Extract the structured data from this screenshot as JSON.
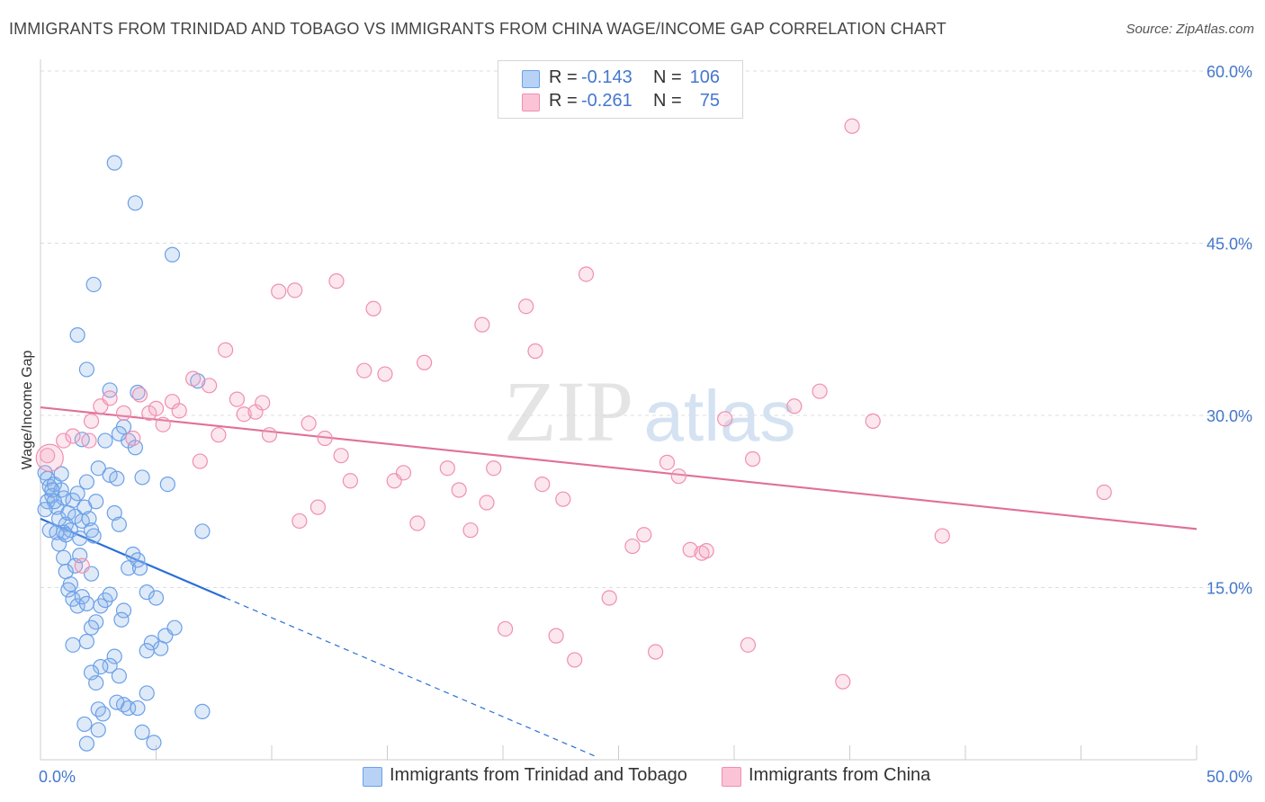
{
  "title": "IMMIGRANTS FROM TRINIDAD AND TOBAGO VS IMMIGRANTS FROM CHINA WAGE/INCOME GAP CORRELATION CHART",
  "source": "Source: ZipAtlas.com",
  "watermark": {
    "zip": "ZIP",
    "atlas": "atlas"
  },
  "legend": {
    "rows": [
      {
        "r_label": "R =",
        "r_value": "-0.143",
        "n_label": "N =",
        "n_value": "106",
        "color": "#6aa0e8",
        "fill": "#b8d2f5"
      },
      {
        "r_label": "R =",
        "r_value": "-0.261",
        "n_label": "N =",
        "n_value": "75",
        "color": "#f08fb0",
        "fill": "#fac4d6"
      }
    ]
  },
  "bottom_legend": [
    {
      "label": "Immigrants from Trinidad and Tobago",
      "color": "#6aa0e8",
      "fill": "#b8d2f5"
    },
    {
      "label": "Immigrants from China",
      "color": "#f08fb0",
      "fill": "#fac4d6"
    }
  ],
  "chart_data": {
    "type": "scatter",
    "ylabel": "Wage/Income Gap",
    "xlabel": "",
    "xlim": [
      0,
      50
    ],
    "ylim": [
      0,
      60
    ],
    "x_tick_labels": [
      "0.0%",
      "50.0%"
    ],
    "y_tick_labels": [
      "15.0%",
      "30.0%",
      "45.0%",
      "60.0%"
    ],
    "y_ticks": [
      15,
      30,
      45,
      60
    ],
    "grid": "horizontal dashed",
    "series": [
      {
        "name": "Immigrants from Trinidad and Tobago",
        "stroke": "#6aa0e8",
        "fill": "rgba(140,180,235,0.28)",
        "trend_color": "#2a6fd6",
        "trend": {
          "x0": 0,
          "y0": 21.0,
          "x1": 8,
          "y1": 14.1,
          "dash_to_x": 24,
          "dash_to_y": 0.3
        },
        "points": [
          [
            0.2,
            25.0
          ],
          [
            0.3,
            24.5
          ],
          [
            0.4,
            23.8
          ],
          [
            0.5,
            23.0
          ],
          [
            0.3,
            22.5
          ],
          [
            0.6,
            24.0
          ],
          [
            0.7,
            22.0
          ],
          [
            0.8,
            21.0
          ],
          [
            0.9,
            23.5
          ],
          [
            1.0,
            22.8
          ],
          [
            1.1,
            20.5
          ],
          [
            1.2,
            21.5
          ],
          [
            1.0,
            19.8
          ],
          [
            0.8,
            18.8
          ],
          [
            1.3,
            20.0
          ],
          [
            1.5,
            21.2
          ],
          [
            1.4,
            22.6
          ],
          [
            1.6,
            23.2
          ],
          [
            1.7,
            19.3
          ],
          [
            1.8,
            20.8
          ],
          [
            1.9,
            22.0
          ],
          [
            2.0,
            24.2
          ],
          [
            2.1,
            21.0
          ],
          [
            2.2,
            20.0
          ],
          [
            2.3,
            19.5
          ],
          [
            2.4,
            22.5
          ],
          [
            2.5,
            25.4
          ],
          [
            0.4,
            20.0
          ],
          [
            0.7,
            19.8
          ],
          [
            1.0,
            17.6
          ],
          [
            1.1,
            16.4
          ],
          [
            1.3,
            15.3
          ],
          [
            1.2,
            14.8
          ],
          [
            1.4,
            14.0
          ],
          [
            1.6,
            13.4
          ],
          [
            1.8,
            14.2
          ],
          [
            2.0,
            13.6
          ],
          [
            2.2,
            16.2
          ],
          [
            2.4,
            12.0
          ],
          [
            2.6,
            13.4
          ],
          [
            2.8,
            13.9
          ],
          [
            3.0,
            14.4
          ],
          [
            3.2,
            21.5
          ],
          [
            3.4,
            20.5
          ],
          [
            3.0,
            24.8
          ],
          [
            3.6,
            13.0
          ],
          [
            3.8,
            16.7
          ],
          [
            4.0,
            17.9
          ],
          [
            4.2,
            17.4
          ],
          [
            4.4,
            24.6
          ],
          [
            4.6,
            14.6
          ],
          [
            5.0,
            14.1
          ],
          [
            5.4,
            10.8
          ],
          [
            5.8,
            11.5
          ],
          [
            4.8,
            10.2
          ],
          [
            5.2,
            9.7
          ],
          [
            3.2,
            9.0
          ],
          [
            3.0,
            8.2
          ],
          [
            2.6,
            8.1
          ],
          [
            2.4,
            6.7
          ],
          [
            2.2,
            7.6
          ],
          [
            3.4,
            7.3
          ],
          [
            1.4,
            10.0
          ],
          [
            2.0,
            10.3
          ],
          [
            3.6,
            4.8
          ],
          [
            3.8,
            4.5
          ],
          [
            4.2,
            4.5
          ],
          [
            4.6,
            5.8
          ],
          [
            2.5,
            4.4
          ],
          [
            4.4,
            2.4
          ],
          [
            2.5,
            2.6
          ],
          [
            2.0,
            1.4
          ],
          [
            4.9,
            1.5
          ],
          [
            7.0,
            4.2
          ],
          [
            7.0,
            19.9
          ],
          [
            6.8,
            33.0
          ],
          [
            5.5,
            24.0
          ],
          [
            4.2,
            32.0
          ],
          [
            3.0,
            32.2
          ],
          [
            3.6,
            29.0
          ],
          [
            3.8,
            27.8
          ],
          [
            2.8,
            27.8
          ],
          [
            3.3,
            24.5
          ],
          [
            1.6,
            37.0
          ],
          [
            2.0,
            34.0
          ],
          [
            2.3,
            41.4
          ],
          [
            3.2,
            52.0
          ],
          [
            4.1,
            48.5
          ],
          [
            5.7,
            44.0
          ],
          [
            1.8,
            27.9
          ],
          [
            3.4,
            28.4
          ],
          [
            0.5,
            23.5
          ],
          [
            0.9,
            24.9
          ],
          [
            1.5,
            16.9
          ],
          [
            4.1,
            27.2
          ],
          [
            0.6,
            22.5
          ],
          [
            0.2,
            21.8
          ],
          [
            1.1,
            19.6
          ],
          [
            1.7,
            17.8
          ],
          [
            4.3,
            16.7
          ],
          [
            3.5,
            12.2
          ],
          [
            2.2,
            11.5
          ],
          [
            4.6,
            9.5
          ],
          [
            3.3,
            5.0
          ],
          [
            1.9,
            3.1
          ],
          [
            2.7,
            4.0
          ]
        ]
      },
      {
        "name": "Immigrants from China",
        "stroke": "#f08fb0",
        "fill": "rgba(245,170,195,0.28)",
        "trend_color": "#e0709a",
        "trend": {
          "x0": 0,
          "y0": 30.7,
          "x1": 50,
          "y1": 20.1
        },
        "points": [
          [
            0.3,
            26.5
          ],
          [
            1.0,
            27.8
          ],
          [
            1.4,
            28.2
          ],
          [
            2.1,
            27.8
          ],
          [
            2.2,
            29.5
          ],
          [
            2.6,
            30.8
          ],
          [
            3.0,
            31.5
          ],
          [
            3.6,
            30.2
          ],
          [
            4.0,
            28.0
          ],
          [
            4.3,
            31.8
          ],
          [
            4.7,
            30.2
          ],
          [
            5.0,
            30.6
          ],
          [
            5.3,
            29.2
          ],
          [
            5.7,
            31.2
          ],
          [
            6.0,
            30.4
          ],
          [
            6.6,
            33.2
          ],
          [
            6.9,
            26.0
          ],
          [
            7.3,
            32.6
          ],
          [
            7.7,
            28.3
          ],
          [
            8.0,
            35.7
          ],
          [
            8.5,
            31.4
          ],
          [
            8.8,
            30.1
          ],
          [
            9.3,
            30.3
          ],
          [
            9.6,
            31.1
          ],
          [
            9.9,
            28.3
          ],
          [
            10.3,
            40.8
          ],
          [
            11.0,
            40.9
          ],
          [
            11.2,
            20.8
          ],
          [
            11.6,
            29.3
          ],
          [
            12.0,
            22.0
          ],
          [
            12.3,
            28.0
          ],
          [
            12.8,
            41.7
          ],
          [
            13.0,
            26.5
          ],
          [
            13.4,
            24.3
          ],
          [
            14.0,
            33.9
          ],
          [
            14.4,
            39.3
          ],
          [
            14.9,
            33.6
          ],
          [
            15.3,
            24.3
          ],
          [
            15.7,
            25.0
          ],
          [
            16.3,
            20.6
          ],
          [
            16.6,
            34.6
          ],
          [
            17.6,
            25.4
          ],
          [
            18.1,
            23.5
          ],
          [
            18.6,
            20.0
          ],
          [
            19.1,
            37.9
          ],
          [
            19.3,
            22.4
          ],
          [
            19.6,
            25.4
          ],
          [
            20.1,
            11.4
          ],
          [
            21.0,
            39.5
          ],
          [
            21.4,
            35.6
          ],
          [
            21.7,
            24.0
          ],
          [
            22.3,
            10.8
          ],
          [
            22.6,
            22.7
          ],
          [
            23.1,
            8.7
          ],
          [
            23.6,
            42.3
          ],
          [
            24.6,
            14.1
          ],
          [
            25.6,
            18.6
          ],
          [
            26.1,
            19.6
          ],
          [
            26.6,
            9.4
          ],
          [
            27.1,
            25.9
          ],
          [
            27.6,
            24.7
          ],
          [
            28.1,
            18.3
          ],
          [
            28.6,
            18.0
          ],
          [
            28.8,
            18.2
          ],
          [
            29.6,
            29.7
          ],
          [
            30.6,
            10.0
          ],
          [
            30.8,
            26.2
          ],
          [
            32.6,
            30.8
          ],
          [
            33.7,
            32.1
          ],
          [
            34.7,
            6.8
          ],
          [
            35.1,
            55.2
          ],
          [
            36.0,
            29.5
          ],
          [
            39.0,
            19.5
          ],
          [
            46.0,
            23.3
          ],
          [
            1.8,
            16.9
          ]
        ]
      }
    ]
  }
}
